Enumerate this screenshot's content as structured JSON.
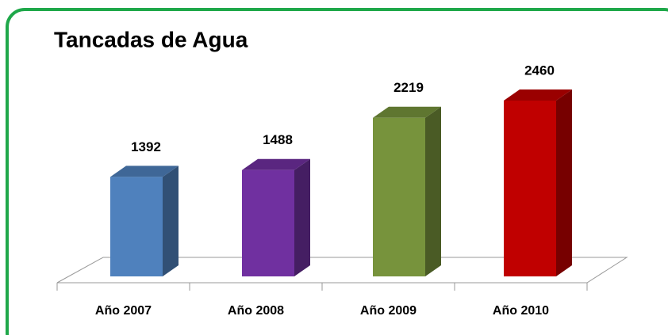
{
  "chart_data": {
    "type": "bar3d",
    "title": "Tancadas de Agua",
    "categories": [
      "Año 2007",
      "Año 2008",
      "Año 2009",
      "Año 2010"
    ],
    "values": [
      1392,
      1488,
      2219,
      2460
    ],
    "colors": [
      "#4f81bd",
      "#7030a0",
      "#77933c",
      "#c00000"
    ]
  }
}
